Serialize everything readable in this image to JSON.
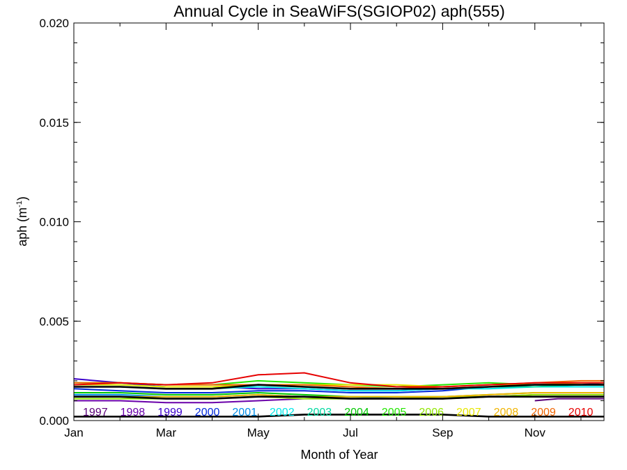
{
  "chart_data": {
    "type": "line",
    "title": "Annual Cycle in SeaWiFS(SGIOP02) aph(555)",
    "xlabel": "Month of Year",
    "ylabel": "aph (m",
    "ylabel_sup": "-1",
    "ylabel_close": ")",
    "xlim": [
      1,
      12.5
    ],
    "ylim": [
      0.0,
      0.02
    ],
    "grid": false,
    "x_ticks": [
      {
        "value": 1,
        "label": "Jan"
      },
      {
        "value": 3,
        "label": "Mar"
      },
      {
        "value": 5,
        "label": "May"
      },
      {
        "value": 7,
        "label": "Jul"
      },
      {
        "value": 9,
        "label": "Sep"
      },
      {
        "value": 11,
        "label": "Nov"
      }
    ],
    "y_ticks": [
      {
        "value": 0.0,
        "label": "0.000"
      },
      {
        "value": 0.005,
        "label": "0.005"
      },
      {
        "value": 0.01,
        "label": "0.010"
      },
      {
        "value": 0.015,
        "label": "0.015"
      },
      {
        "value": 0.02,
        "label": "0.020"
      }
    ],
    "legend_placement": "bottom, inside plot",
    "series": [
      {
        "name": "1997",
        "color": "#5a007a",
        "x": [
          11,
          11.5,
          12,
          12.5
        ],
        "values": [
          0.001,
          0.0011,
          0.0011,
          0.0011
        ]
      },
      {
        "name": "1998",
        "color": "#6a00aa",
        "x": [
          1,
          2,
          3,
          4,
          5,
          6,
          7,
          8,
          9,
          10,
          11,
          12,
          12.5
        ],
        "values": [
          0.001,
          0.001,
          0.0009,
          0.0009,
          0.001,
          0.0011,
          0.0011,
          0.0011,
          0.0011,
          0.0012,
          0.0013,
          0.0013,
          0.0013
        ]
      },
      {
        "name": "1999",
        "color": "#3c00cc",
        "x": [
          1,
          2,
          3,
          4,
          5,
          6,
          7,
          8,
          9,
          10,
          11,
          12,
          12.5
        ],
        "values": [
          0.0021,
          0.0019,
          0.0017,
          0.0017,
          0.0016,
          0.0016,
          0.0015,
          0.0015,
          0.0016,
          0.0017,
          0.0017,
          0.0017,
          0.0017
        ]
      },
      {
        "name": "2000",
        "color": "#0028dd",
        "x": [
          1,
          2,
          3,
          4,
          5,
          6,
          7,
          8,
          9,
          10,
          11,
          12,
          12.5
        ],
        "values": [
          0.0016,
          0.0015,
          0.0014,
          0.0014,
          0.0015,
          0.0015,
          0.0014,
          0.0014,
          0.0015,
          0.0017,
          0.0018,
          0.0018,
          0.0019
        ]
      },
      {
        "name": "2001",
        "color": "#008ce8",
        "x": [
          1,
          2,
          3,
          4,
          5,
          6,
          7,
          8,
          9,
          10,
          11,
          12,
          12.5
        ],
        "values": [
          0.0013,
          0.0013,
          0.0012,
          0.0012,
          0.0013,
          0.0012,
          0.0012,
          0.0011,
          0.0011,
          0.0012,
          0.0012,
          0.0012,
          0.0012
        ]
      },
      {
        "name": "2002",
        "color": "#00e6e6",
        "x": [
          1,
          2,
          3,
          4,
          5,
          6,
          7,
          8,
          9,
          10,
          11,
          12,
          12.5
        ],
        "values": [
          0.0017,
          0.0017,
          0.0016,
          0.0016,
          0.0017,
          0.0016,
          0.0015,
          0.0015,
          0.0016,
          0.0016,
          0.0017,
          0.0017,
          0.0017
        ]
      },
      {
        "name": "2003",
        "color": "#00d9a0",
        "x": [
          1,
          2,
          3,
          4,
          5,
          6,
          7,
          8,
          9,
          10,
          11,
          12,
          12.5
        ],
        "values": [
          0.0018,
          0.0018,
          0.0017,
          0.0017,
          0.0018,
          0.0017,
          0.0016,
          0.0016,
          0.0016,
          0.0017,
          0.0017,
          0.0018,
          0.0018
        ]
      },
      {
        "name": "2004",
        "color": "#00c800",
        "x": [
          1,
          2,
          3,
          4,
          5,
          6,
          7,
          8,
          9,
          10,
          11,
          12,
          12.5
        ],
        "values": [
          0.0014,
          0.0014,
          0.0013,
          0.0013,
          0.0014,
          0.0013,
          0.0012,
          0.0012,
          0.0012,
          0.0013,
          0.0014,
          0.0014,
          0.0014
        ]
      },
      {
        "name": "2005",
        "color": "#22e600",
        "x": [
          1,
          2,
          3,
          4,
          5,
          6,
          7,
          8,
          9,
          10,
          11,
          12,
          12.5
        ],
        "values": [
          0.0019,
          0.0019,
          0.0018,
          0.0018,
          0.002,
          0.0019,
          0.0018,
          0.0017,
          0.0018,
          0.0019,
          0.0018,
          0.0018,
          0.0018
        ]
      },
      {
        "name": "2006",
        "color": "#90e600",
        "x": [
          1,
          2,
          3,
          4,
          5,
          6,
          7,
          8,
          9,
          10,
          11,
          12,
          12.5
        ],
        "values": [
          0.0011,
          0.0011,
          0.0011,
          0.0011,
          0.0012,
          0.0011,
          0.0011,
          0.0011,
          0.0012,
          0.0012,
          0.0013,
          0.0013,
          0.0013
        ]
      },
      {
        "name": "2007",
        "color": "#e6e600",
        "x": [
          1,
          2,
          3,
          4,
          5,
          6,
          7,
          8,
          9,
          10,
          11,
          12,
          12.5
        ],
        "values": [
          0.0018,
          0.0018,
          0.0017,
          0.0017,
          0.0018,
          0.0018,
          0.0018,
          0.0018,
          0.0017,
          0.0018,
          0.0018,
          0.0019,
          0.0019
        ]
      },
      {
        "name": "2008",
        "color": "#f0b400",
        "x": [
          1,
          2,
          3,
          4,
          5,
          6,
          7,
          8,
          9,
          10,
          11,
          12,
          12.5
        ],
        "values": [
          0.0012,
          0.0012,
          0.0012,
          0.0012,
          0.0013,
          0.0012,
          0.0012,
          0.0012,
          0.0012,
          0.0013,
          0.0014,
          0.0014,
          0.0014
        ]
      },
      {
        "name": "2009",
        "color": "#f06400",
        "x": [
          1,
          2,
          3,
          4,
          5,
          6,
          7,
          8,
          9,
          10,
          11,
          12,
          12.5
        ],
        "values": [
          0.0019,
          0.0019,
          0.0018,
          0.0018,
          0.0018,
          0.0018,
          0.0017,
          0.0016,
          0.0017,
          0.0018,
          0.0019,
          0.002,
          0.002
        ]
      },
      {
        "name": "2010",
        "color": "#e60000",
        "x": [
          1,
          2,
          3,
          4,
          5,
          6,
          7,
          8,
          9,
          10,
          11,
          12,
          12.5
        ],
        "values": [
          0.0018,
          0.0019,
          0.0018,
          0.0019,
          0.0023,
          0.0024,
          0.0019,
          0.0017,
          0.0017,
          0.0018,
          0.0019,
          0.0019,
          0.0019
        ]
      },
      {
        "name": "",
        "color": "#000000",
        "x": [
          1,
          2,
          3,
          4,
          5,
          6,
          7,
          8,
          9,
          10,
          11,
          12,
          12.5
        ],
        "values": [
          0.0017,
          0.0017,
          0.0016,
          0.0016,
          0.0018,
          0.0017,
          0.0016,
          0.0016,
          0.0016,
          0.0017,
          0.0018,
          0.0018,
          0.0018
        ]
      },
      {
        "name": "",
        "color": "#000000",
        "x": [
          1,
          2,
          3,
          4,
          5,
          6,
          7,
          8,
          9,
          10,
          11,
          12,
          12.5
        ],
        "values": [
          0.0012,
          0.0012,
          0.0011,
          0.0011,
          0.0012,
          0.0012,
          0.0011,
          0.0011,
          0.0011,
          0.0012,
          0.0012,
          0.0012,
          0.0012
        ]
      },
      {
        "name": "",
        "color": "#000000",
        "x": [
          1,
          2,
          3,
          4,
          5,
          6,
          7,
          8,
          9,
          10,
          11,
          12,
          12.5
        ],
        "values": [
          0.0002,
          0.0002,
          0.0002,
          0.0002,
          0.0002,
          0.0003,
          0.0003,
          0.0003,
          0.0003,
          0.0002,
          0.0002,
          0.0002,
          0.0002
        ]
      }
    ]
  }
}
